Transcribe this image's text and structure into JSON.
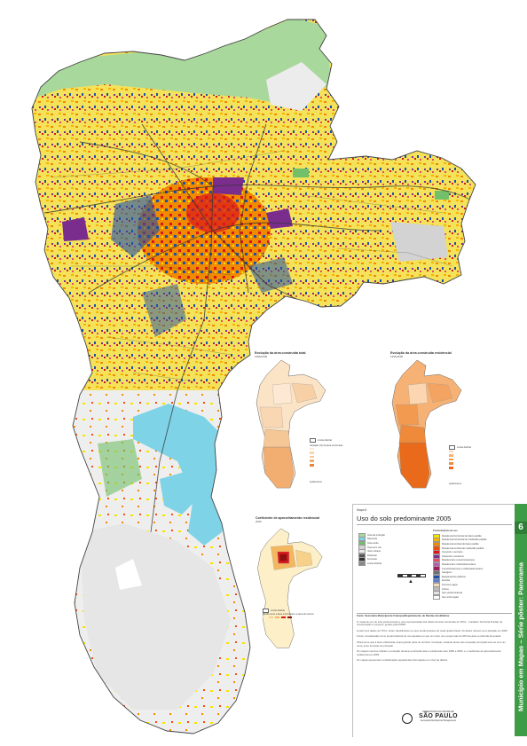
{
  "map_label": "Mapa 6",
  "title": "Uso do solo predominante 2005",
  "inset_1": {
    "title": "Evolução da área construída total",
    "subtitle": "1995/2005"
  },
  "inset_2": {
    "title": "Evolução da área construída residencial",
    "subtitle": "1995/2005"
  },
  "inset_3": {
    "title": "Coeficiente de aproveitamento residencial",
    "subtitle": "2005"
  },
  "inset_legend": {
    "boundary": "Limite distrital",
    "legend_title_1": "Variação (%) da área construída",
    "legend_title_3": "Razão entre a área construída e a área do terreno",
    "scale": "Quilômetros"
  },
  "legend_left": [
    {
      "label": "Área de proteção",
      "color": "#a8d89c"
    },
    {
      "label": "Represas",
      "color": "#7fd3e6"
    },
    {
      "label": "Área verde",
      "color": "#72c06a"
    },
    {
      "label": "Área sem uso",
      "color": "#d3d3d3"
    },
    {
      "label": "Vazio urbano",
      "color": "#ececec"
    },
    {
      "label": "Rodovias",
      "color": "#555555"
    },
    {
      "label": "Ferrovias",
      "color": "#333333"
    },
    {
      "label": "Limite distrital",
      "color": "#888888"
    }
  ],
  "legend_right_title": "Predominância de uso",
  "legend_right": [
    {
      "label": "Residencial horizontal de baixo padrão",
      "color": "#f5e400"
    },
    {
      "label": "Residencial horizontal de médio/alto padrão",
      "color": "#f7b400"
    },
    {
      "label": "Residencial vertical de baixo padrão",
      "color": "#f08a00"
    },
    {
      "label": "Residencial vertical de médio/alto padrão",
      "color": "#e8520e"
    },
    {
      "label": "Comércio e serviços",
      "color": "#d9161b"
    },
    {
      "label": "Industrial e armazéns",
      "color": "#7b2d8e"
    },
    {
      "label": "Residencial e comércio/serviços",
      "color": "#e44a6a"
    },
    {
      "label": "Residencial e indústria/armazéns",
      "color": "#b05fb0"
    },
    {
      "label": "Comércio/serviços e indústria/armazéns",
      "color": "#9d1e5e"
    },
    {
      "label": "Garagens",
      "color": "#6e6e6e"
    },
    {
      "label": "Equipamentos públicos",
      "color": "#1f4fa6"
    },
    {
      "label": "Escolas",
      "color": "#5a7fd0"
    },
    {
      "label": "Terrenos vagos",
      "color": "#f3dcc1"
    },
    {
      "label": "Outros",
      "color": "#b9b9b9"
    },
    {
      "label": "Sem predominância",
      "color": "#e3e3e3"
    },
    {
      "label": "Sem informação",
      "color": "#ffffff"
    }
  ],
  "notes": {
    "source": "Fonte: Secretaria Municipal de Finanças/Departamento de Rendas Imobiliárias.",
    "paragraphs": [
      "O mapa de uso do solo predominante é uma representação dos dados da área construída do TPCL – Cadastro Territorial Predial, de Conservação e Limpeza, gerado pela PMSP.",
      "A partir dos dados do TPCL, foram classificados os usos predominantes de cada quadra fiscal. Os dados referem-se à situação em 2005.",
      "Foram consideradas como predominância de uso aquelas em que um único uso ocupa mais de 60% da área construída da quadra.",
      "Observa-se que a área urbanizada ocupa grande parte do território municipal, restando áreas não ocupadas principalmente ao sul e ao norte, junto às áreas de proteção.",
      "Os mapas menores indicam a evolução da área construída total e residencial entre 1995 e 2005, e o coeficiente de aproveitamento residencial em 2005.",
      "Os mapas apresentam a distribuição espacial das informações em nível de distrito."
    ]
  },
  "logo": {
    "line1": "PREFEITURA DA CIDADE DE",
    "line2": "SÃO PAULO",
    "line3": "Secretaria Municipal de Planejamento"
  },
  "side_number": "6",
  "side_text": "Município em Mapas – Série pôster: Panorama"
}
